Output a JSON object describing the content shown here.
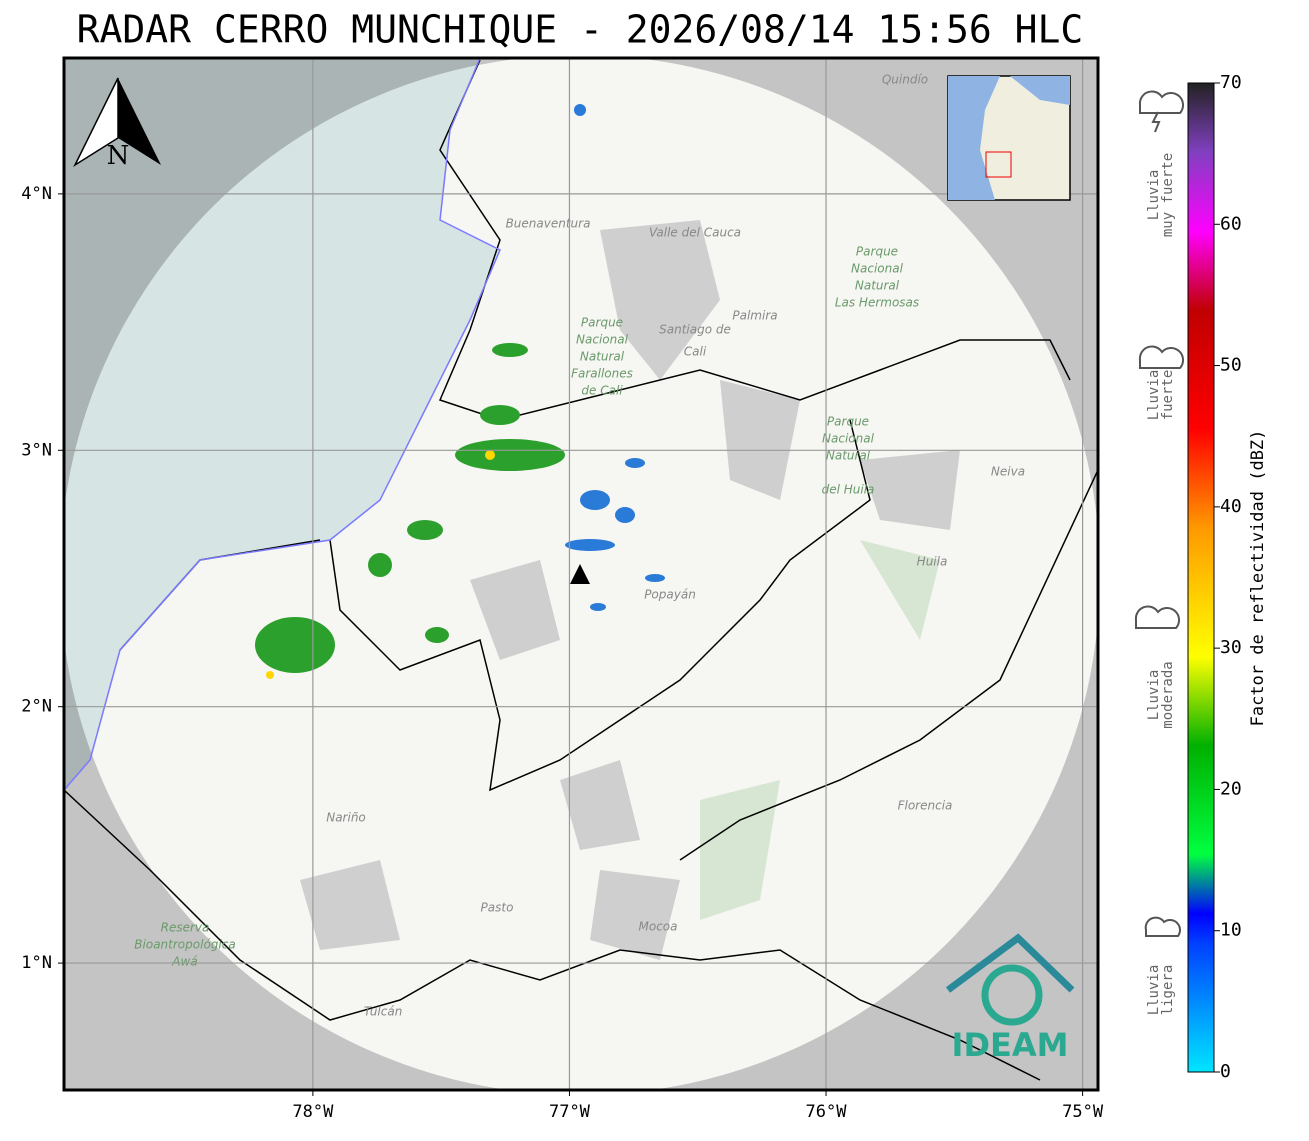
{
  "title": "RADAR CERRO MUNCHIQUE - 2026/08/14 15:56 HLC",
  "map": {
    "xlim": [
      -78.97,
      -74.94
    ],
    "ylim": [
      0.505,
      4.53
    ],
    "xticks": [
      {
        "value": -78,
        "label": "78°W"
      },
      {
        "value": -77,
        "label": "77°W"
      },
      {
        "value": -76,
        "label": "76°W"
      },
      {
        "value": -75,
        "label": "75°W"
      }
    ],
    "yticks": [
      {
        "value": 1,
        "label": "1°N"
      },
      {
        "value": 2,
        "label": "2°N"
      },
      {
        "value": 3,
        "label": "3°N"
      },
      {
        "value": 4,
        "label": "4°N"
      }
    ],
    "grid": true,
    "north": "N",
    "places": [
      "Quindío",
      "Buenaventura",
      "Valle del Cauca",
      "Palmira",
      "Santiago de",
      "Cali",
      "Parque",
      "Nacional",
      "Natural",
      "Farallones",
      "de Cali",
      "Parque",
      "Nacional",
      "Natural",
      "Las Hermosas",
      "Parque",
      "Nacional",
      "Natural",
      "del Huila",
      "Neiva",
      "Huila",
      "Popayán",
      "Nariño",
      "Pasto",
      "Mocoa",
      "Florencia",
      "Reserva",
      "Bioantropológica",
      "Awá",
      "Tulcán"
    ],
    "logo": "IDEAM"
  },
  "colorbar": {
    "label": "Factor de reflectividad (dBZ)",
    "lim": [
      0,
      70
    ],
    "ticks": [
      0,
      10,
      20,
      30,
      40,
      50,
      60,
      70
    ]
  },
  "legend": [
    [
      "Lluvia",
      "muy fuerte"
    ],
    [
      "Lluvia",
      "fuerte"
    ],
    [
      "Lluvia",
      "moderada"
    ],
    [
      "Lluvia",
      "ligera"
    ]
  ]
}
